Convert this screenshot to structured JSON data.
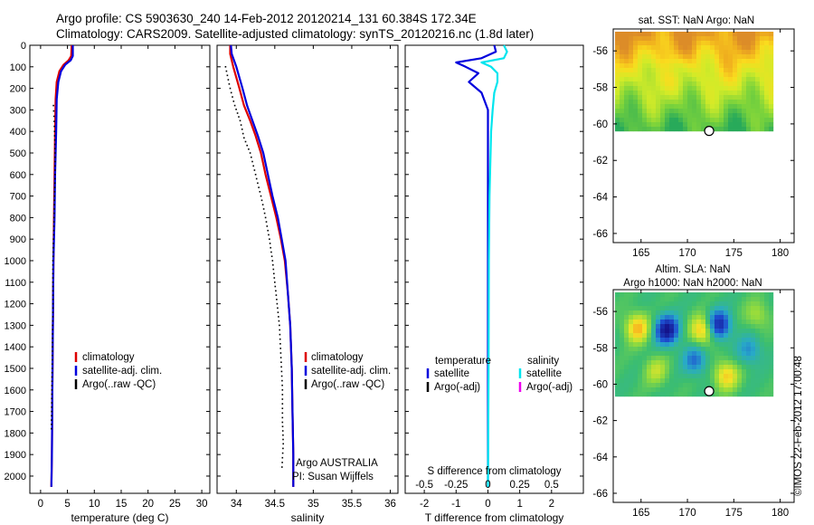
{
  "header": {
    "line1": "Argo profile: CS 5903630_240 14-Feb-2012 20120214_131 60.384S 172.34E",
    "line2": "Climatology: CARS2009. Satellite-adjusted climatology: synTS_20120216.nc (1.8d later)"
  },
  "credit": "©IMOS 22-Feb-2012 17:00:48",
  "chart_data": [
    {
      "type": "line",
      "xlabel": "temperature (deg C)",
      "xlim": [
        -2,
        31.5
      ],
      "xticks": [
        0,
        5,
        10,
        15,
        20,
        25,
        30
      ],
      "ylim": [
        0,
        2080
      ],
      "yticks": [
        0,
        100,
        200,
        300,
        400,
        500,
        600,
        700,
        800,
        900,
        1000,
        1100,
        1200,
        1300,
        1400,
        1500,
        1600,
        1700,
        1800,
        1900,
        2000
      ],
      "legend": [
        "climatology",
        "satellite-adj. clim.",
        "Argo(..raw -QC)"
      ],
      "legend_colors": [
        "#dd0000",
        "#0000dd",
        "#000000"
      ],
      "series": [
        {
          "name": "climatology",
          "color": "#dd0000",
          "x": [
            5.8,
            5.7,
            5.2,
            4.3,
            3.5,
            3.0,
            2.8,
            2.7,
            2.6,
            2.5,
            2.4,
            2.3,
            2.2,
            2.1,
            2.0
          ],
          "y": [
            0,
            50,
            70,
            90,
            120,
            170,
            250,
            400,
            600,
            800,
            1000,
            1300,
            1600,
            1900,
            2050
          ]
        },
        {
          "name": "satellite-adj. clim.",
          "color": "#0000dd",
          "x": [
            6.0,
            6.0,
            5.6,
            4.6,
            3.8,
            3.3,
            3.0,
            2.9,
            2.7,
            2.6,
            2.4,
            2.3,
            2.2,
            2.1,
            2.0
          ],
          "y": [
            0,
            50,
            70,
            90,
            120,
            170,
            250,
            400,
            600,
            800,
            1000,
            1300,
            1600,
            1900,
            2050
          ]
        },
        {
          "name": "Argo(..raw -QC)",
          "color": "#000000",
          "dotted": true,
          "x": [
            2.4,
            2.5,
            2.6,
            2.7,
            2.7,
            2.6,
            2.5,
            2.4,
            2.3,
            2.3,
            2.2,
            2.1,
            2.0
          ],
          "y": [
            280,
            330,
            400,
            500,
            600,
            700,
            800,
            900,
            1000,
            1200,
            1400,
            1600,
            1800
          ]
        }
      ]
    },
    {
      "type": "line",
      "xlabel": "salinity",
      "xlim": [
        33.75,
        36.1
      ],
      "xticks": [
        34,
        34.5,
        35,
        35.5,
        36
      ],
      "ylim": [
        0,
        2080
      ],
      "legend": [
        "climatology",
        "satellite-adj. clim.",
        "Argo(..raw -QC)"
      ],
      "legend_colors": [
        "#dd0000",
        "#0000dd",
        "#000000"
      ],
      "annotation": [
        "Argo AUSTRALIA",
        "PI: Susan Wijffels"
      ],
      "series": [
        {
          "name": "climatology",
          "color": "#dd0000",
          "x": [
            33.92,
            33.92,
            33.96,
            34.0,
            34.04,
            34.1,
            34.18,
            34.25,
            34.32,
            34.38,
            34.45,
            34.52,
            34.58,
            34.63,
            34.67,
            34.7,
            34.72,
            34.73,
            34.74,
            34.74
          ],
          "y": [
            0,
            40,
            100,
            150,
            200,
            280,
            350,
            420,
            500,
            600,
            700,
            800,
            900,
            1000,
            1150,
            1300,
            1500,
            1700,
            1900,
            2050
          ]
        },
        {
          "name": "satellite-adj. clim.",
          "color": "#0000dd",
          "x": [
            33.93,
            33.94,
            34.0,
            34.04,
            34.08,
            34.14,
            34.21,
            34.28,
            34.35,
            34.41,
            34.47,
            34.54,
            34.59,
            34.64,
            34.67,
            34.7,
            34.72,
            34.73,
            34.74,
            34.74
          ],
          "y": [
            0,
            40,
            100,
            150,
            200,
            280,
            350,
            420,
            500,
            600,
            700,
            800,
            900,
            1000,
            1150,
            1300,
            1500,
            1700,
            1900,
            2050
          ]
        },
        {
          "name": "Argo(..raw -QC)",
          "color": "#000000",
          "dotted": true,
          "x": [
            33.86,
            33.92,
            33.98,
            34.05,
            34.1,
            34.18,
            34.25,
            34.32,
            34.38,
            34.43,
            34.47,
            34.5,
            34.53,
            34.56,
            34.58,
            34.6,
            34.6,
            34.61,
            34.59
          ],
          "y": [
            100,
            200,
            280,
            350,
            430,
            500,
            600,
            700,
            800,
            900,
            1000,
            1100,
            1200,
            1300,
            1450,
            1600,
            1750,
            1850,
            1980
          ]
        }
      ]
    },
    {
      "type": "line",
      "xlabel": "T difference from climatology",
      "xlim": [
        -2.6,
        3.0
      ],
      "xticks": [
        -2,
        -1,
        0,
        1,
        2
      ],
      "top_axis_label": "S difference from climatology",
      "top_ticks": [
        "-0.5",
        "-0.25",
        "0",
        "0.25",
        "0.5"
      ],
      "top_tick_values": [
        -2,
        -1,
        0,
        1,
        2
      ],
      "ylim": [
        0,
        2080
      ],
      "legend_groups": [
        {
          "title": "temperature",
          "items": [
            "satellite",
            "Argo(-adj)"
          ],
          "colors": [
            "#0000dd",
            "#000000"
          ]
        },
        {
          "title": "salinity",
          "items": [
            "satellite",
            "Argo(-adj)"
          ],
          "colors": [
            "#00e5ee",
            "#ee00ee"
          ]
        }
      ],
      "series": [
        {
          "name": "temperature satellite",
          "color": "#0000dd",
          "x": [
            0.2,
            0.25,
            -0.2,
            -1.0,
            -0.7,
            -0.3,
            -0.6,
            -0.2,
            0.0,
            0.0,
            0.0,
            0.0,
            0.0,
            0.0
          ],
          "y": [
            0,
            30,
            60,
            80,
            100,
            130,
            170,
            220,
            300,
            400,
            700,
            1000,
            1500,
            2050
          ]
        },
        {
          "name": "salinity satellite",
          "color": "#00e5ee",
          "x": [
            0.5,
            0.6,
            0.5,
            -0.2,
            0.1,
            0.3,
            0.3,
            0.2,
            0.15,
            0.1,
            0.05,
            0.03,
            0.02,
            0.0
          ],
          "y": [
            0,
            30,
            60,
            80,
            100,
            130,
            170,
            220,
            300,
            400,
            700,
            1000,
            1500,
            2050
          ]
        }
      ]
    },
    {
      "type": "heatmap",
      "title": "sat. SST: NaN Argo: NaN",
      "xlim": [
        162,
        181.5
      ],
      "ylim": [
        -66.5,
        -54.8
      ],
      "xticks": [
        165,
        170,
        175,
        180
      ],
      "yticks": [
        -56,
        -58,
        -60,
        -62,
        -64,
        -66
      ],
      "marker": {
        "lon": 172.34,
        "lat": -60.384
      }
    },
    {
      "type": "heatmap",
      "title_lines": [
        "Altim. SLA: NaN",
        "Argo h1000: NaN h2000: NaN"
      ],
      "xlim": [
        162,
        181.5
      ],
      "ylim": [
        -66.5,
        -54.8
      ],
      "xticks": [
        165,
        170,
        175,
        180
      ],
      "yticks": [
        -56,
        -58,
        -60,
        -62,
        -64,
        -66
      ],
      "marker": {
        "lon": 172.34,
        "lat": -60.384
      }
    }
  ]
}
